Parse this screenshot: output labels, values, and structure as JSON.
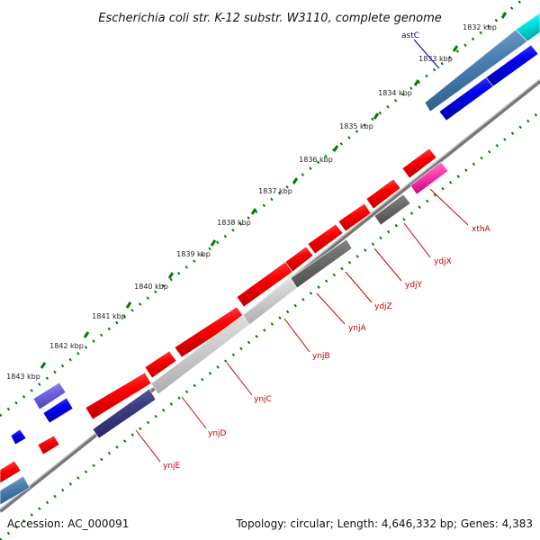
{
  "title": "Escherichia coli str. K-12 substr. W3110, complete genome",
  "footer": {
    "accession": "Accession: AC_000091",
    "summary": "Topology: circular; Length: 4,646,332 bp; Genes: 4,383"
  },
  "ticks": [
    "1832 kbp",
    "1833 kbp",
    "1834 kbp",
    "1835 kbp",
    "1836 kbp",
    "1837 kbp",
    "1838 kbp",
    "1839 kbp",
    "1840 kbp",
    "1841 kbp",
    "1842 kbp",
    "1843 kbp"
  ],
  "gene_labels": [
    "astC",
    "xthA",
    "ydjX",
    "ydjY",
    "ydjZ",
    "ynjA",
    "ynjB",
    "ynjC",
    "ynjD",
    "ynjE"
  ],
  "colors": {
    "forward_cds": "#ff0000",
    "reverse_cds": "#0000ff",
    "label_red": "#cc0000",
    "label_blue": "#0000aa",
    "tick_green": "#008000",
    "backbone": "#777777"
  }
}
